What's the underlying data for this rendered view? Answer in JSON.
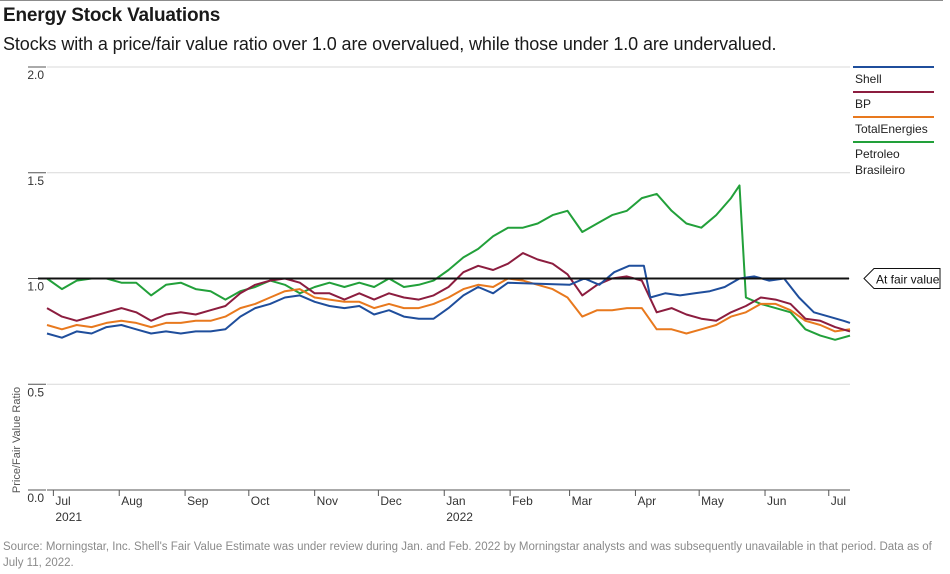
{
  "title": "Energy Stock Valuations",
  "subtitle": "Stocks with a price/fair value ratio over 1.0 are overvalued, while those under 1.0 are undervalued.",
  "source": "Source: Morningstar, Inc. Shell's Fair Value Estimate was under review during Jan. and Feb. 2022 by Morningstar analysts and was subsequently unavailable in that period. Data as of July 11, 2022.",
  "chart_data": {
    "type": "line",
    "ylabel": "Price/Fair Value Ratio",
    "ylim": [
      0,
      2
    ],
    "yticks": [
      "0.0",
      "0.5",
      "1.0",
      "1.5",
      "2.0"
    ],
    "xlim": [
      "2021-06-28",
      "2022-07-11"
    ],
    "xticks": [
      {
        "date": "2021-07-01",
        "label": "Jul",
        "sub": "2021"
      },
      {
        "date": "2021-08-01",
        "label": "Aug",
        "sub": ""
      },
      {
        "date": "2021-09-01",
        "label": "Sep",
        "sub": ""
      },
      {
        "date": "2021-10-01",
        "label": "Oct",
        "sub": ""
      },
      {
        "date": "2021-11-01",
        "label": "Nov",
        "sub": ""
      },
      {
        "date": "2021-12-01",
        "label": "Dec",
        "sub": ""
      },
      {
        "date": "2022-01-01",
        "label": "Jan",
        "sub": "2022"
      },
      {
        "date": "2022-02-01",
        "label": "Feb",
        "sub": ""
      },
      {
        "date": "2022-03-01",
        "label": "Mar",
        "sub": ""
      },
      {
        "date": "2022-04-01",
        "label": "Apr",
        "sub": ""
      },
      {
        "date": "2022-05-01",
        "label": "May",
        "sub": ""
      },
      {
        "date": "2022-06-01",
        "label": "Jun",
        "sub": ""
      },
      {
        "date": "2022-07-01",
        "label": "Jul",
        "sub": ""
      }
    ],
    "reference_line": {
      "y": 1.0,
      "label": "At fair value"
    },
    "legend_position": "right",
    "series": [
      {
        "name": "Shell",
        "color": "#1f4e9c",
        "points": [
          [
            "2021-06-28",
            0.74
          ],
          [
            "2021-07-05",
            0.72
          ],
          [
            "2021-07-12",
            0.75
          ],
          [
            "2021-07-19",
            0.74
          ],
          [
            "2021-07-26",
            0.77
          ],
          [
            "2021-08-02",
            0.78
          ],
          [
            "2021-08-09",
            0.76
          ],
          [
            "2021-08-16",
            0.74
          ],
          [
            "2021-08-23",
            0.75
          ],
          [
            "2021-08-30",
            0.74
          ],
          [
            "2021-09-06",
            0.75
          ],
          [
            "2021-09-13",
            0.75
          ],
          [
            "2021-09-20",
            0.76
          ],
          [
            "2021-09-27",
            0.82
          ],
          [
            "2021-10-04",
            0.86
          ],
          [
            "2021-10-11",
            0.88
          ],
          [
            "2021-10-18",
            0.91
          ],
          [
            "2021-10-25",
            0.92
          ],
          [
            "2021-11-01",
            0.89
          ],
          [
            "2021-11-08",
            0.87
          ],
          [
            "2021-11-15",
            0.86
          ],
          [
            "2021-11-22",
            0.87
          ],
          [
            "2021-11-29",
            0.83
          ],
          [
            "2021-12-06",
            0.85
          ],
          [
            "2021-12-13",
            0.82
          ],
          [
            "2021-12-20",
            0.81
          ],
          [
            "2021-12-27",
            0.81
          ],
          [
            "2022-01-03",
            0.86
          ],
          [
            "2022-01-10",
            0.92
          ],
          [
            "2022-01-17",
            0.96
          ],
          [
            "2022-01-24",
            0.93
          ],
          [
            "2022-01-31",
            0.98
          ],
          [
            "2022-03-01",
            0.97
          ],
          [
            "2022-03-08",
            1.0
          ],
          [
            "2022-03-15",
            0.97
          ],
          [
            "2022-03-22",
            1.03
          ],
          [
            "2022-03-29",
            1.06
          ],
          [
            "2022-04-05",
            1.06
          ],
          [
            "2022-04-08",
            0.91
          ],
          [
            "2022-04-15",
            0.93
          ],
          [
            "2022-04-22",
            0.92
          ],
          [
            "2022-04-29",
            0.93
          ],
          [
            "2022-05-06",
            0.94
          ],
          [
            "2022-05-13",
            0.96
          ],
          [
            "2022-05-20",
            1.0
          ],
          [
            "2022-05-27",
            1.01
          ],
          [
            "2022-06-03",
            0.99
          ],
          [
            "2022-06-10",
            1.0
          ],
          [
            "2022-06-17",
            0.91
          ],
          [
            "2022-06-24",
            0.84
          ],
          [
            "2022-07-01",
            0.82
          ],
          [
            "2022-07-08",
            0.8
          ],
          [
            "2022-07-11",
            0.79
          ]
        ]
      },
      {
        "name": "BP",
        "color": "#8c1d3f",
        "points": [
          [
            "2021-06-28",
            0.86
          ],
          [
            "2021-07-05",
            0.82
          ],
          [
            "2021-07-12",
            0.8
          ],
          [
            "2021-07-19",
            0.82
          ],
          [
            "2021-07-26",
            0.84
          ],
          [
            "2021-08-02",
            0.86
          ],
          [
            "2021-08-09",
            0.84
          ],
          [
            "2021-08-16",
            0.8
          ],
          [
            "2021-08-23",
            0.83
          ],
          [
            "2021-08-30",
            0.84
          ],
          [
            "2021-09-06",
            0.83
          ],
          [
            "2021-09-13",
            0.85
          ],
          [
            "2021-09-20",
            0.87
          ],
          [
            "2021-09-27",
            0.93
          ],
          [
            "2021-10-04",
            0.97
          ],
          [
            "2021-10-11",
            0.99
          ],
          [
            "2021-10-18",
            1.0
          ],
          [
            "2021-10-25",
            0.98
          ],
          [
            "2021-11-01",
            0.93
          ],
          [
            "2021-11-08",
            0.93
          ],
          [
            "2021-11-15",
            0.9
          ],
          [
            "2021-11-22",
            0.93
          ],
          [
            "2021-11-29",
            0.9
          ],
          [
            "2021-12-06",
            0.93
          ],
          [
            "2021-12-13",
            0.91
          ],
          [
            "2021-12-20",
            0.9
          ],
          [
            "2021-12-27",
            0.92
          ],
          [
            "2022-01-03",
            0.96
          ],
          [
            "2022-01-10",
            1.03
          ],
          [
            "2022-01-17",
            1.06
          ],
          [
            "2022-01-24",
            1.04
          ],
          [
            "2022-01-31",
            1.07
          ],
          [
            "2022-02-07",
            1.12
          ],
          [
            "2022-02-14",
            1.09
          ],
          [
            "2022-02-21",
            1.07
          ],
          [
            "2022-02-28",
            1.02
          ],
          [
            "2022-03-07",
            0.92
          ],
          [
            "2022-03-14",
            0.97
          ],
          [
            "2022-03-21",
            1.0
          ],
          [
            "2022-03-28",
            1.01
          ],
          [
            "2022-04-04",
            0.99
          ],
          [
            "2022-04-11",
            0.84
          ],
          [
            "2022-04-18",
            0.86
          ],
          [
            "2022-04-25",
            0.83
          ],
          [
            "2022-05-02",
            0.81
          ],
          [
            "2022-05-09",
            0.8
          ],
          [
            "2022-05-16",
            0.84
          ],
          [
            "2022-05-23",
            0.87
          ],
          [
            "2022-05-30",
            0.91
          ],
          [
            "2022-06-06",
            0.9
          ],
          [
            "2022-06-13",
            0.88
          ],
          [
            "2022-06-20",
            0.81
          ],
          [
            "2022-06-27",
            0.8
          ],
          [
            "2022-07-04",
            0.77
          ],
          [
            "2022-07-11",
            0.75
          ]
        ]
      },
      {
        "name": "TotalEnergies",
        "color": "#e8791e",
        "points": [
          [
            "2021-06-28",
            0.78
          ],
          [
            "2021-07-05",
            0.76
          ],
          [
            "2021-07-12",
            0.78
          ],
          [
            "2021-07-19",
            0.77
          ],
          [
            "2021-07-26",
            0.79
          ],
          [
            "2021-08-02",
            0.8
          ],
          [
            "2021-08-09",
            0.79
          ],
          [
            "2021-08-16",
            0.77
          ],
          [
            "2021-08-23",
            0.79
          ],
          [
            "2021-08-30",
            0.79
          ],
          [
            "2021-09-06",
            0.8
          ],
          [
            "2021-09-13",
            0.8
          ],
          [
            "2021-09-20",
            0.82
          ],
          [
            "2021-09-27",
            0.86
          ],
          [
            "2021-10-04",
            0.88
          ],
          [
            "2021-10-11",
            0.91
          ],
          [
            "2021-10-18",
            0.94
          ],
          [
            "2021-10-25",
            0.95
          ],
          [
            "2021-11-01",
            0.91
          ],
          [
            "2021-11-08",
            0.9
          ],
          [
            "2021-11-15",
            0.89
          ],
          [
            "2021-11-22",
            0.89
          ],
          [
            "2021-11-29",
            0.86
          ],
          [
            "2021-12-06",
            0.88
          ],
          [
            "2021-12-13",
            0.86
          ],
          [
            "2021-12-20",
            0.86
          ],
          [
            "2021-12-27",
            0.88
          ],
          [
            "2022-01-03",
            0.91
          ],
          [
            "2022-01-10",
            0.95
          ],
          [
            "2022-01-17",
            0.97
          ],
          [
            "2022-01-24",
            0.96
          ],
          [
            "2022-01-31",
            1.0
          ],
          [
            "2022-02-07",
            0.99
          ],
          [
            "2022-02-14",
            0.97
          ],
          [
            "2022-02-21",
            0.95
          ],
          [
            "2022-02-28",
            0.91
          ],
          [
            "2022-03-07",
            0.82
          ],
          [
            "2022-03-14",
            0.85
          ],
          [
            "2022-03-21",
            0.85
          ],
          [
            "2022-03-28",
            0.86
          ],
          [
            "2022-04-04",
            0.86
          ],
          [
            "2022-04-11",
            0.76
          ],
          [
            "2022-04-18",
            0.76
          ],
          [
            "2022-04-25",
            0.74
          ],
          [
            "2022-05-02",
            0.76
          ],
          [
            "2022-05-09",
            0.78
          ],
          [
            "2022-05-16",
            0.82
          ],
          [
            "2022-05-23",
            0.84
          ],
          [
            "2022-05-30",
            0.88
          ],
          [
            "2022-06-06",
            0.88
          ],
          [
            "2022-06-13",
            0.85
          ],
          [
            "2022-06-20",
            0.8
          ],
          [
            "2022-06-27",
            0.78
          ],
          [
            "2022-07-04",
            0.75
          ],
          [
            "2022-07-11",
            0.76
          ]
        ]
      },
      {
        "name": "Petroleo Brasileiro",
        "color": "#22a03a",
        "points": [
          [
            "2021-06-28",
            1.0
          ],
          [
            "2021-07-05",
            0.95
          ],
          [
            "2021-07-12",
            0.99
          ],
          [
            "2021-07-19",
            1.0
          ],
          [
            "2021-07-26",
            1.0
          ],
          [
            "2021-08-02",
            0.98
          ],
          [
            "2021-08-09",
            0.98
          ],
          [
            "2021-08-16",
            0.92
          ],
          [
            "2021-08-23",
            0.97
          ],
          [
            "2021-08-30",
            0.98
          ],
          [
            "2021-09-06",
            0.95
          ],
          [
            "2021-09-13",
            0.94
          ],
          [
            "2021-09-20",
            0.9
          ],
          [
            "2021-09-27",
            0.94
          ],
          [
            "2021-10-04",
            0.96
          ],
          [
            "2021-10-11",
            0.99
          ],
          [
            "2021-10-18",
            0.97
          ],
          [
            "2021-10-25",
            0.93
          ],
          [
            "2021-11-01",
            0.96
          ],
          [
            "2021-11-08",
            0.98
          ],
          [
            "2021-11-15",
            0.96
          ],
          [
            "2021-11-22",
            0.98
          ],
          [
            "2021-11-29",
            0.96
          ],
          [
            "2021-12-06",
            1.0
          ],
          [
            "2021-12-13",
            0.96
          ],
          [
            "2021-12-20",
            0.97
          ],
          [
            "2021-12-27",
            0.99
          ],
          [
            "2022-01-03",
            1.04
          ],
          [
            "2022-01-10",
            1.1
          ],
          [
            "2022-01-17",
            1.14
          ],
          [
            "2022-01-24",
            1.2
          ],
          [
            "2022-01-31",
            1.24
          ],
          [
            "2022-02-07",
            1.24
          ],
          [
            "2022-02-14",
            1.26
          ],
          [
            "2022-02-21",
            1.3
          ],
          [
            "2022-02-28",
            1.32
          ],
          [
            "2022-03-07",
            1.22
          ],
          [
            "2022-03-14",
            1.26
          ],
          [
            "2022-03-21",
            1.3
          ],
          [
            "2022-03-28",
            1.32
          ],
          [
            "2022-04-04",
            1.38
          ],
          [
            "2022-04-11",
            1.4
          ],
          [
            "2022-04-18",
            1.32
          ],
          [
            "2022-04-25",
            1.26
          ],
          [
            "2022-05-02",
            1.24
          ],
          [
            "2022-05-09",
            1.3
          ],
          [
            "2022-05-16",
            1.38
          ],
          [
            "2022-05-20",
            1.44
          ],
          [
            "2022-05-23",
            0.91
          ],
          [
            "2022-05-30",
            0.88
          ],
          [
            "2022-06-06",
            0.86
          ],
          [
            "2022-06-13",
            0.84
          ],
          [
            "2022-06-20",
            0.76
          ],
          [
            "2022-06-27",
            0.73
          ],
          [
            "2022-07-04",
            0.71
          ],
          [
            "2022-07-11",
            0.73
          ]
        ]
      }
    ]
  }
}
